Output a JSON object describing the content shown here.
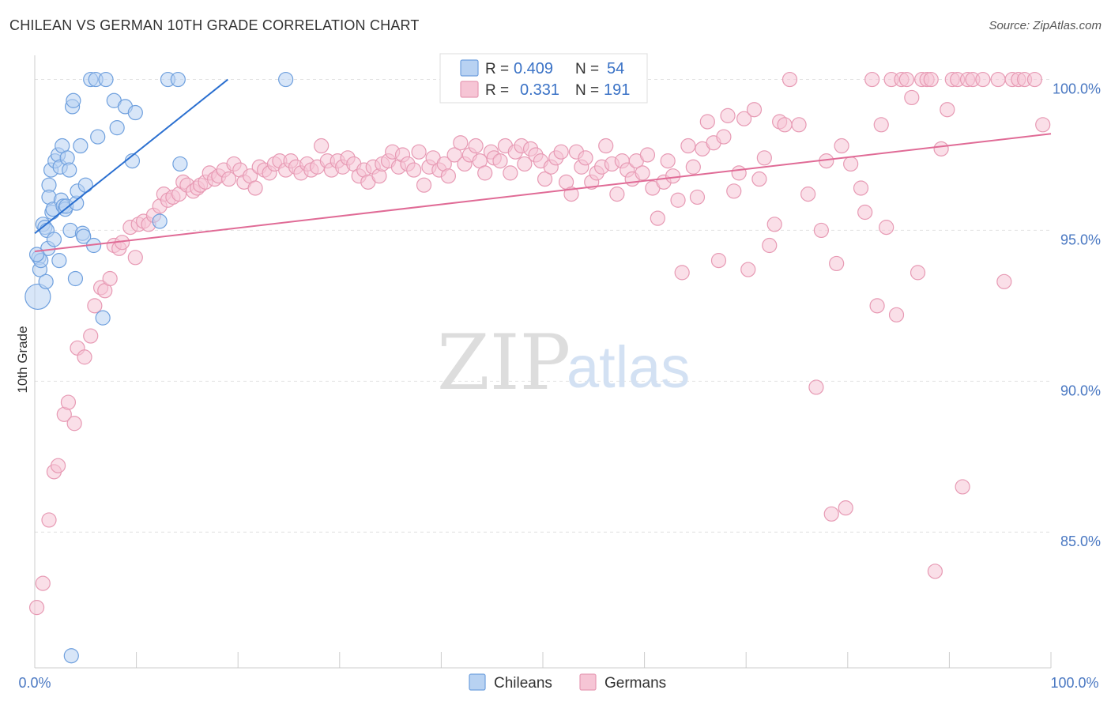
{
  "header": {
    "title": "CHILEAN VS GERMAN 10TH GRADE CORRELATION CHART",
    "source": "Source: ZipAtlas.com"
  },
  "watermark": {
    "zip": "ZIP",
    "atlas": "atlas"
  },
  "stats": {
    "r_label": "R =",
    "n_label": "N =",
    "chileans": {
      "r": "0.409",
      "n": "54"
    },
    "germans": {
      "r": "0.331",
      "n": "191"
    }
  },
  "chart_data": {
    "type": "scatter",
    "title": "CHILEAN VS GERMAN 10TH GRADE CORRELATION CHART",
    "xlabel": "",
    "ylabel": "10th Grade",
    "xlim": [
      0,
      100
    ],
    "ylim": [
      80.5,
      100.8
    ],
    "x_tick_labels": [
      "0.0%",
      "100.0%"
    ],
    "y_ticks": [
      85,
      90,
      95,
      100
    ],
    "y_tick_labels": [
      "85.0%",
      "90.0%",
      "95.0%",
      "100.0%"
    ],
    "grid": true,
    "legend_position": "bottom-center",
    "series": [
      {
        "name": "Chileans",
        "color": "#6fa0de",
        "fill": "#b8d2f2",
        "trend": {
          "x0": 0,
          "y0": 94.9,
          "x1": 19,
          "y1": 100
        },
        "points": [
          [
            0.3,
            92.8
          ],
          [
            0.4,
            94.1
          ],
          [
            0.5,
            93.7
          ],
          [
            0.6,
            94.0
          ],
          [
            0.8,
            95.2
          ],
          [
            1.0,
            95.1
          ],
          [
            1.1,
            93.3
          ],
          [
            1.2,
            95.0
          ],
          [
            1.3,
            94.4
          ],
          [
            1.4,
            96.5
          ],
          [
            1.4,
            96.1
          ],
          [
            1.6,
            97.0
          ],
          [
            1.7,
            95.6
          ],
          [
            1.8,
            95.7
          ],
          [
            1.9,
            94.7
          ],
          [
            2.0,
            97.3
          ],
          [
            2.3,
            97.5
          ],
          [
            2.4,
            94.0
          ],
          [
            2.5,
            97.1
          ],
          [
            2.6,
            96.0
          ],
          [
            2.7,
            97.8
          ],
          [
            2.8,
            95.8
          ],
          [
            3.0,
            95.7
          ],
          [
            3.1,
            95.8
          ],
          [
            3.2,
            97.4
          ],
          [
            3.4,
            97.0
          ],
          [
            3.5,
            95.0
          ],
          [
            3.7,
            99.1
          ],
          [
            3.8,
            99.3
          ],
          [
            4.0,
            93.4
          ],
          [
            4.1,
            95.9
          ],
          [
            4.2,
            96.3
          ],
          [
            4.5,
            97.8
          ],
          [
            4.7,
            94.9
          ],
          [
            4.8,
            94.8
          ],
          [
            5.0,
            96.5
          ],
          [
            5.5,
            100.0
          ],
          [
            5.8,
            94.5
          ],
          [
            6.0,
            100.0
          ],
          [
            6.2,
            98.1
          ],
          [
            6.7,
            92.1
          ],
          [
            7.0,
            100.0
          ],
          [
            7.8,
            99.3
          ],
          [
            8.1,
            98.4
          ],
          [
            8.9,
            99.1
          ],
          [
            9.6,
            97.3
          ],
          [
            9.9,
            98.9
          ],
          [
            12.3,
            95.3
          ],
          [
            13.1,
            100.0
          ],
          [
            14.1,
            100.0
          ],
          [
            14.3,
            97.2
          ],
          [
            24.7,
            100.0
          ],
          [
            3.6,
            80.9
          ],
          [
            0.2,
            94.2
          ]
        ]
      },
      {
        "name": "Germans",
        "color": "#e79ab4",
        "fill": "#f6c5d5",
        "trend": {
          "x0": 0,
          "y0": 94.3,
          "x1": 100,
          "y1": 98.2
        },
        "points": [
          [
            0.2,
            82.5
          ],
          [
            0.8,
            83.3
          ],
          [
            1.4,
            85.4
          ],
          [
            1.9,
            87.0
          ],
          [
            2.3,
            87.2
          ],
          [
            2.9,
            88.9
          ],
          [
            3.3,
            89.3
          ],
          [
            3.9,
            88.6
          ],
          [
            4.2,
            91.1
          ],
          [
            4.9,
            90.8
          ],
          [
            5.5,
            91.5
          ],
          [
            5.9,
            92.5
          ],
          [
            6.5,
            93.1
          ],
          [
            6.9,
            93.0
          ],
          [
            7.4,
            93.4
          ],
          [
            7.8,
            94.5
          ],
          [
            8.3,
            94.4
          ],
          [
            8.6,
            94.6
          ],
          [
            9.4,
            95.1
          ],
          [
            9.9,
            94.1
          ],
          [
            10.2,
            95.2
          ],
          [
            10.7,
            95.3
          ],
          [
            11.2,
            95.2
          ],
          [
            11.7,
            95.5
          ],
          [
            12.3,
            95.8
          ],
          [
            12.7,
            96.2
          ],
          [
            13.1,
            96.0
          ],
          [
            13.6,
            96.1
          ],
          [
            14.2,
            96.2
          ],
          [
            14.6,
            96.6
          ],
          [
            15.0,
            96.5
          ],
          [
            15.6,
            96.3
          ],
          [
            16.0,
            96.4
          ],
          [
            16.3,
            96.5
          ],
          [
            16.8,
            96.6
          ],
          [
            17.2,
            96.9
          ],
          [
            17.7,
            96.7
          ],
          [
            18.1,
            96.8
          ],
          [
            18.6,
            97.0
          ],
          [
            19.1,
            96.7
          ],
          [
            19.6,
            97.2
          ],
          [
            20.2,
            97.0
          ],
          [
            20.6,
            96.6
          ],
          [
            21.2,
            96.8
          ],
          [
            21.7,
            96.4
          ],
          [
            22.1,
            97.1
          ],
          [
            22.6,
            97.0
          ],
          [
            23.1,
            96.9
          ],
          [
            23.6,
            97.2
          ],
          [
            24.1,
            97.3
          ],
          [
            24.7,
            97.0
          ],
          [
            25.2,
            97.3
          ],
          [
            25.7,
            97.1
          ],
          [
            26.2,
            96.9
          ],
          [
            26.8,
            97.2
          ],
          [
            27.2,
            97.0
          ],
          [
            27.8,
            97.1
          ],
          [
            28.2,
            97.8
          ],
          [
            28.8,
            97.3
          ],
          [
            29.2,
            97.0
          ],
          [
            29.8,
            97.3
          ],
          [
            30.3,
            97.1
          ],
          [
            30.8,
            97.4
          ],
          [
            31.4,
            97.2
          ],
          [
            31.9,
            96.8
          ],
          [
            32.4,
            97.0
          ],
          [
            32.8,
            96.6
          ],
          [
            33.3,
            97.1
          ],
          [
            33.9,
            96.8
          ],
          [
            34.2,
            97.2
          ],
          [
            34.8,
            97.3
          ],
          [
            35.2,
            97.6
          ],
          [
            35.8,
            97.1
          ],
          [
            36.2,
            97.5
          ],
          [
            36.7,
            97.2
          ],
          [
            37.3,
            97.0
          ],
          [
            37.8,
            97.6
          ],
          [
            38.3,
            96.5
          ],
          [
            38.8,
            97.1
          ],
          [
            39.2,
            97.4
          ],
          [
            39.8,
            97.0
          ],
          [
            40.3,
            97.2
          ],
          [
            40.7,
            96.8
          ],
          [
            41.3,
            97.5
          ],
          [
            41.9,
            97.9
          ],
          [
            42.3,
            97.2
          ],
          [
            42.8,
            97.5
          ],
          [
            43.4,
            97.8
          ],
          [
            43.8,
            97.3
          ],
          [
            44.3,
            96.9
          ],
          [
            44.9,
            97.6
          ],
          [
            45.2,
            97.4
          ],
          [
            45.8,
            97.3
          ],
          [
            46.3,
            97.8
          ],
          [
            46.8,
            96.9
          ],
          [
            47.3,
            97.6
          ],
          [
            47.9,
            97.8
          ],
          [
            48.2,
            97.2
          ],
          [
            48.8,
            97.7
          ],
          [
            49.3,
            97.5
          ],
          [
            49.8,
            97.3
          ],
          [
            50.2,
            96.7
          ],
          [
            50.8,
            97.1
          ],
          [
            51.3,
            97.4
          ],
          [
            51.8,
            97.6
          ],
          [
            52.3,
            96.6
          ],
          [
            52.8,
            96.2
          ],
          [
            53.3,
            97.6
          ],
          [
            53.8,
            97.1
          ],
          [
            54.2,
            97.4
          ],
          [
            54.8,
            96.6
          ],
          [
            55.3,
            96.9
          ],
          [
            55.8,
            97.1
          ],
          [
            56.2,
            97.8
          ],
          [
            56.8,
            97.2
          ],
          [
            57.3,
            96.2
          ],
          [
            57.8,
            97.3
          ],
          [
            58.3,
            97.0
          ],
          [
            58.8,
            96.7
          ],
          [
            59.2,
            97.3
          ],
          [
            59.8,
            96.9
          ],
          [
            60.3,
            97.5
          ],
          [
            60.8,
            96.4
          ],
          [
            61.3,
            95.4
          ],
          [
            61.9,
            96.6
          ],
          [
            62.3,
            97.3
          ],
          [
            62.8,
            96.8
          ],
          [
            63.3,
            96.0
          ],
          [
            63.7,
            93.6
          ],
          [
            64.3,
            97.8
          ],
          [
            64.8,
            97.1
          ],
          [
            65.2,
            96.1
          ],
          [
            65.7,
            97.7
          ],
          [
            66.2,
            98.6
          ],
          [
            66.8,
            97.9
          ],
          [
            67.3,
            94.0
          ],
          [
            67.8,
            98.1
          ],
          [
            68.2,
            98.8
          ],
          [
            68.8,
            96.3
          ],
          [
            69.3,
            96.9
          ],
          [
            69.8,
            98.7
          ],
          [
            70.2,
            93.7
          ],
          [
            70.8,
            99.0
          ],
          [
            71.3,
            96.7
          ],
          [
            71.8,
            97.4
          ],
          [
            72.3,
            94.5
          ],
          [
            72.8,
            95.2
          ],
          [
            73.3,
            98.6
          ],
          [
            73.8,
            98.5
          ],
          [
            74.3,
            100.0
          ],
          [
            75.2,
            98.5
          ],
          [
            76.1,
            96.2
          ],
          [
            76.9,
            89.8
          ],
          [
            77.4,
            95.0
          ],
          [
            77.9,
            97.3
          ],
          [
            78.4,
            85.6
          ],
          [
            78.9,
            93.9
          ],
          [
            79.4,
            97.8
          ],
          [
            79.8,
            85.8
          ],
          [
            80.3,
            97.2
          ],
          [
            81.3,
            96.4
          ],
          [
            81.7,
            95.6
          ],
          [
            82.4,
            100.0
          ],
          [
            82.9,
            92.5
          ],
          [
            83.3,
            98.5
          ],
          [
            83.8,
            95.1
          ],
          [
            84.3,
            100.0
          ],
          [
            84.8,
            92.2
          ],
          [
            85.3,
            100.0
          ],
          [
            85.8,
            100.0
          ],
          [
            86.3,
            99.4
          ],
          [
            86.9,
            93.6
          ],
          [
            87.3,
            100.0
          ],
          [
            87.8,
            100.0
          ],
          [
            88.2,
            100.0
          ],
          [
            88.6,
            83.7
          ],
          [
            89.2,
            97.7
          ],
          [
            89.8,
            99.0
          ],
          [
            90.3,
            100.0
          ],
          [
            90.8,
            100.0
          ],
          [
            91.3,
            86.5
          ],
          [
            91.8,
            100.0
          ],
          [
            92.3,
            100.0
          ],
          [
            93.3,
            100.0
          ],
          [
            94.8,
            100.0
          ],
          [
            95.4,
            93.3
          ],
          [
            96.2,
            100.0
          ],
          [
            96.8,
            100.0
          ],
          [
            97.4,
            100.0
          ],
          [
            98.4,
            100.0
          ],
          [
            99.2,
            98.5
          ]
        ]
      }
    ]
  }
}
